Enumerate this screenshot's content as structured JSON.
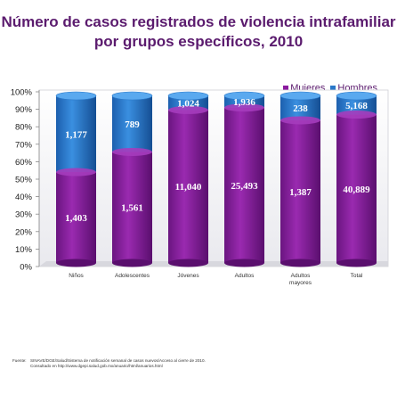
{
  "title_line1": "Número de casos registrados de violencia intrafamiliar",
  "title_line2": "por grupos específicos, 2010",
  "legend": [
    {
      "label": "Mujeres",
      "color": "#8b1a9f"
    },
    {
      "label": "Hombres",
      "color": "#2a78c9"
    }
  ],
  "chart_data": {
    "type": "bar",
    "stacked": "100%",
    "categories": [
      "Niños",
      "Adolescentes",
      "Jóvenes",
      "Adultos",
      "Adultos mayores",
      "Total"
    ],
    "series": [
      {
        "name": "Mujeres",
        "values": [
          1403,
          1561,
          11040,
          25493,
          1387,
          40889
        ],
        "labels": [
          "1,403",
          "1,561",
          "11,040",
          "25,493",
          "1,387",
          "40,889"
        ]
      },
      {
        "name": "Hombres",
        "values": [
          1177,
          789,
          1024,
          1936,
          238,
          5168
        ],
        "labels": [
          "1,177",
          "789",
          "1,024",
          "1,936",
          "238",
          "5,168"
        ]
      }
    ],
    "ylim": [
      0,
      100
    ],
    "yticks": [
      "0%",
      "10%",
      "20%",
      "30%",
      "40%",
      "50%",
      "60%",
      "70%",
      "80%",
      "90%",
      "100%"
    ]
  },
  "source": {
    "label": "Fuente:",
    "text": "SINAVE/DGE/Salud/Sistema de notificación semanal de casos nuevos/Acceso al cierre de 2010.",
    "text2": "Consultado en http://www.dgepi.salud.gob.mx/anuario/html/anuarios.html"
  }
}
